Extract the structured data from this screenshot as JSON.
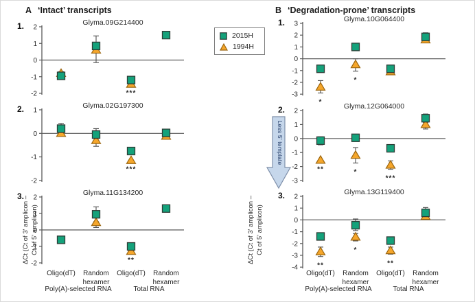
{
  "headers": {
    "a": {
      "label": "A",
      "title": "‘Intact’ transcripts"
    },
    "b": {
      "label": "B",
      "title": "‘Degradation-prone’ transcripts"
    }
  },
  "legend": {
    "items": [
      {
        "label": "2015H",
        "marker": "square"
      },
      {
        "label": "1994H",
        "marker": "triangle"
      }
    ]
  },
  "arrow": {
    "label": "Less 5' template"
  },
  "axis": {
    "x_tick_labels": [
      "Oligo(dT)",
      "Random\nhexamer",
      "Oligo(dT)",
      "Random\nhexamer"
    ],
    "x_group_labels": [
      "Poly(A)-selected RNA",
      "Total RNA"
    ],
    "y_label": "ΔCt (Ct of 3' amplicon –\nCt of 5' amplicon)"
  },
  "colors": {
    "series_2015h": "#14a27b",
    "series_2015h_border": "#2e3c36",
    "series_1994h": "#f5a62b",
    "series_1994h_border": "#9a650f",
    "error": "#4d4d4d",
    "axis": "#595959",
    "text": "#262626",
    "arrow_fill": "#c6d7eb",
    "arrow_border": "#7e8fa9",
    "arrow_text": "#1f3864"
  },
  "chart_data": [
    {
      "type": "scatter",
      "panel": "A",
      "subplot": "1.",
      "title": "Glyma.09G214400",
      "ylim": [
        -2,
        2
      ],
      "yticks": [
        2,
        1,
        0,
        -1,
        -2
      ],
      "categories": [
        "Oligo(dT)",
        "Random hexamer",
        "Oligo(dT)",
        "Random hexamer"
      ],
      "series": [
        {
          "name": "2015H",
          "values": [
            -0.95,
            0.85,
            -1.2,
            1.5
          ],
          "errors": [
            [
              -1.15,
              -0.7
            ],
            [
              -0.15,
              1.45
            ],
            null,
            [
              1.35,
              1.65
            ]
          ]
        },
        {
          "name": "1994H",
          "values": [
            -0.8,
            0.6,
            -1.45,
            null
          ],
          "errors": [
            null,
            null,
            null,
            null
          ]
        }
      ],
      "significance": [
        null,
        null,
        "***",
        null
      ]
    },
    {
      "type": "scatter",
      "panel": "A",
      "subplot": "2.",
      "title": "Glyma.02G197300",
      "ylim": [
        -2,
        1
      ],
      "yticks": [
        1,
        0,
        -1,
        -2
      ],
      "categories": [
        "Oligo(dT)",
        "Random hexamer",
        "Oligo(dT)",
        "Random hexamer"
      ],
      "series": [
        {
          "name": "2015H",
          "values": [
            0.2,
            -0.05,
            -0.75,
            0.02
          ],
          "errors": [
            [
              0.0,
              0.42
            ],
            [
              -0.3,
              0.2
            ],
            null,
            [
              -0.15,
              0.18
            ]
          ]
        },
        {
          "name": "1994H",
          "values": [
            0.0,
            -0.3,
            -1.15,
            -0.12
          ],
          "errors": [
            null,
            [
              -0.55,
              -0.05
            ],
            null,
            null
          ]
        }
      ],
      "significance": [
        null,
        null,
        "***",
        null
      ]
    },
    {
      "type": "scatter",
      "panel": "A",
      "subplot": "3.",
      "title": "Glyma.11G134200",
      "ylim": [
        -2,
        2
      ],
      "yticks": [
        2,
        1,
        0,
        -1,
        -2
      ],
      "categories": [
        "Oligo(dT)",
        "Random hexamer",
        "Oligo(dT)",
        "Random hexamer"
      ],
      "series": [
        {
          "name": "2015H",
          "values": [
            -0.6,
            0.95,
            -1.0,
            1.3
          ],
          "errors": [
            [
              -0.82,
              -0.42
            ],
            [
              0.5,
              1.4
            ],
            null,
            [
              1.1,
              1.5
            ]
          ]
        },
        {
          "name": "1994H",
          "values": [
            null,
            0.45,
            -1.3,
            null
          ],
          "errors": [
            null,
            [
              0.15,
              0.78
            ],
            null,
            null
          ]
        }
      ],
      "significance": [
        null,
        null,
        "**",
        null
      ]
    },
    {
      "type": "scatter",
      "panel": "B",
      "subplot": "1.",
      "title": "Glyma.10G064400",
      "ylim": [
        -3,
        3
      ],
      "yticks": [
        3,
        2,
        1,
        0,
        -1,
        -2,
        -3
      ],
      "categories": [
        "Oligo(dT)",
        "Random hexamer",
        "Oligo(dT)",
        "Random hexamer"
      ],
      "series": [
        {
          "name": "2015H",
          "values": [
            -0.85,
            1.0,
            -0.85,
            1.85
          ],
          "errors": [
            null,
            null,
            null,
            [
              1.5,
              2.2
            ]
          ]
        },
        {
          "name": "1994H",
          "values": [
            -2.4,
            -0.5,
            -1.1,
            1.6
          ],
          "errors": [
            [
              -2.9,
              -1.85
            ],
            [
              -1.05,
              0.0
            ],
            null,
            null
          ]
        }
      ],
      "significance": [
        "*",
        "*",
        null,
        null
      ]
    },
    {
      "type": "scatter",
      "panel": "B",
      "subplot": "2.",
      "title": "Glyma.12G064000",
      "ylim": [
        -3,
        2
      ],
      "yticks": [
        2,
        1,
        0,
        -1,
        -2,
        -3
      ],
      "categories": [
        "Oligo(dT)",
        "Random hexamer",
        "Oligo(dT)",
        "Random hexamer"
      ],
      "series": [
        {
          "name": "2015H",
          "values": [
            -0.15,
            0.05,
            -0.7,
            1.45
          ],
          "errors": [
            [
              -0.45,
              0.12
            ],
            null,
            null,
            [
              1.15,
              1.75
            ]
          ]
        },
        {
          "name": "1994H",
          "values": [
            -1.55,
            -1.2,
            -1.9,
            1.0
          ],
          "errors": [
            null,
            [
              -1.75,
              -0.65
            ],
            [
              -2.2,
              -1.6
            ],
            [
              0.68,
              1.3
            ]
          ]
        }
      ],
      "significance": [
        "**",
        "*",
        "***",
        null
      ]
    },
    {
      "type": "scatter",
      "panel": "B",
      "subplot": "3.",
      "title": "Glyma.13G119400",
      "ylim": [
        -4,
        2
      ],
      "yticks": [
        2,
        1,
        0,
        -1,
        -2,
        -3,
        -4
      ],
      "categories": [
        "Oligo(dT)",
        "Random hexamer",
        "Oligo(dT)",
        "Random hexamer"
      ],
      "series": [
        {
          "name": "2015H",
          "values": [
            -1.4,
            -0.45,
            -1.75,
            0.6
          ],
          "errors": [
            null,
            [
              -0.9,
              0.08
            ],
            null,
            [
              0.25,
              1.05
            ]
          ]
        },
        {
          "name": "1994H",
          "values": [
            -2.7,
            -1.45,
            -2.6,
            0.3
          ],
          "errors": [
            [
              -3.1,
              -2.3
            ],
            [
              -1.78,
              -1.15
            ],
            [
              -2.9,
              -2.3
            ],
            null
          ]
        }
      ],
      "significance": [
        "**",
        "*",
        "**",
        null
      ]
    }
  ]
}
